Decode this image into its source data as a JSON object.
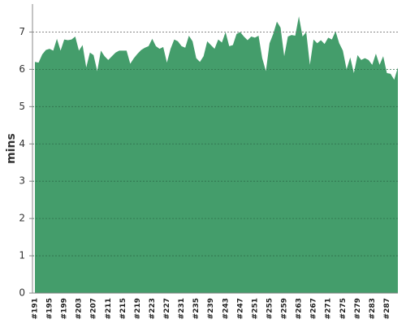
{
  "chart_data": {
    "type": "area",
    "ylabel": "mins",
    "color": "#449d6b",
    "grid": true,
    "categories": [
      "#191",
      null,
      null,
      null,
      "#195",
      null,
      null,
      null,
      "#199",
      null,
      null,
      null,
      "#203",
      null,
      null,
      null,
      "#207",
      null,
      null,
      null,
      "#211",
      null,
      null,
      null,
      "#215",
      null,
      null,
      null,
      "#219",
      null,
      null,
      null,
      "#223",
      null,
      null,
      null,
      "#227",
      null,
      null,
      null,
      "#231",
      null,
      null,
      null,
      "#235",
      null,
      null,
      null,
      "#239",
      null,
      null,
      null,
      "#243",
      null,
      null,
      null,
      "#247",
      null,
      null,
      null,
      "#251",
      null,
      null,
      null,
      "#255",
      null,
      null,
      null,
      "#259",
      null,
      null,
      null,
      "#263",
      null,
      null,
      null,
      "#267",
      null,
      null,
      null,
      "#271",
      null,
      null,
      null,
      "#275",
      null,
      null,
      null,
      "#279",
      null,
      null,
      null,
      "#283",
      null,
      null,
      null,
      "#287",
      null,
      null,
      null
    ],
    "values": [
      6.2,
      6.18,
      6.4,
      6.52,
      6.55,
      6.5,
      6.82,
      6.5,
      6.8,
      6.78,
      6.8,
      6.88,
      6.5,
      6.65,
      6.05,
      6.45,
      6.38,
      5.95,
      6.5,
      6.35,
      6.25,
      6.35,
      6.45,
      6.5,
      6.5,
      6.5,
      6.15,
      6.3,
      6.42,
      6.52,
      6.58,
      6.62,
      6.82,
      6.62,
      6.55,
      6.6,
      6.18,
      6.55,
      6.8,
      6.75,
      6.62,
      6.58,
      6.9,
      6.75,
      6.3,
      6.2,
      6.35,
      6.75,
      6.65,
      6.55,
      6.8,
      6.72,
      7.0,
      6.62,
      6.65,
      6.95,
      7.0,
      6.88,
      6.78,
      6.88,
      6.85,
      6.9,
      6.3,
      5.95,
      6.7,
      6.95,
      7.28,
      7.12,
      6.35,
      6.88,
      6.92,
      6.9,
      7.42,
      6.88,
      7.0,
      6.12,
      6.8,
      6.7,
      6.78,
      6.68,
      6.85,
      6.8,
      7.02,
      6.7,
      6.5,
      6.0,
      6.32,
      5.9,
      6.38,
      6.25,
      6.3,
      6.25,
      6.12,
      6.42,
      6.12,
      6.35,
      5.9,
      5.88,
      5.72,
      6.05
    ],
    "ylim": [
      0,
      7.75
    ],
    "yticks": [
      0,
      1,
      2,
      3,
      4,
      5,
      6,
      7
    ]
  }
}
